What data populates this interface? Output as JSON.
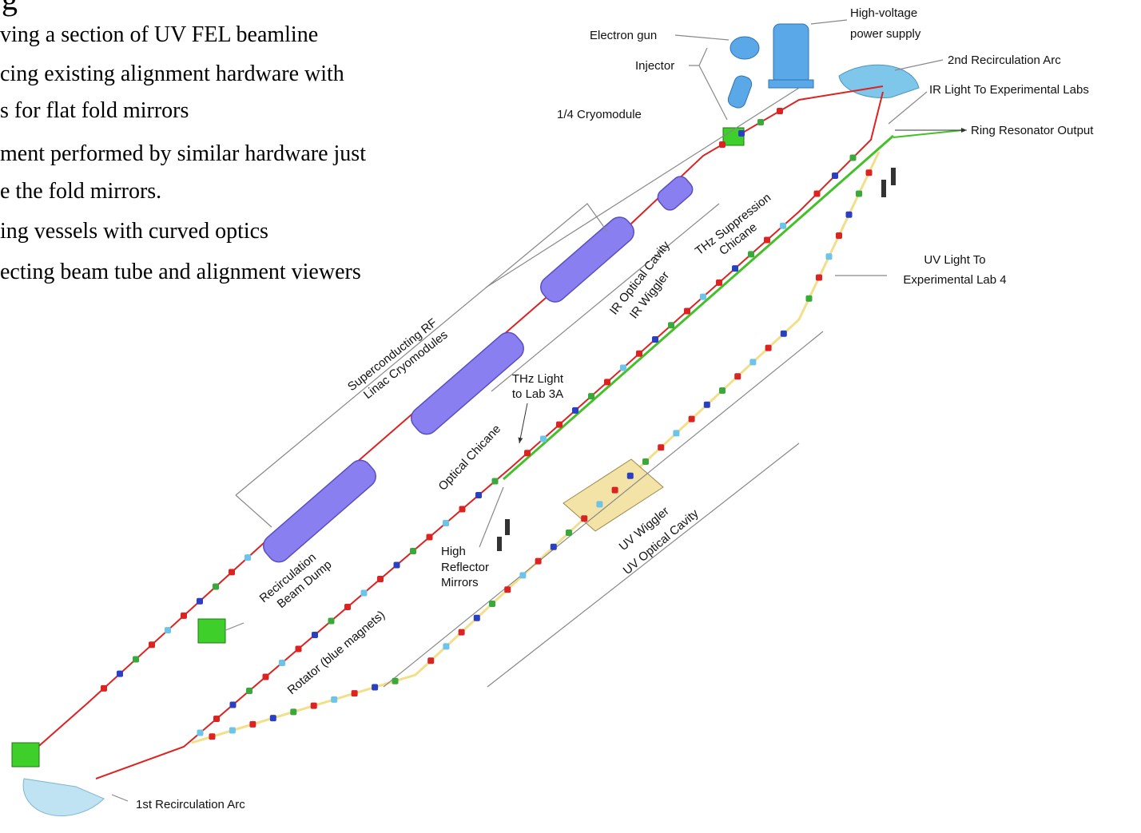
{
  "slide": {
    "heading_fragment": "g",
    "bullets": [
      "ving a section of UV FEL beamline",
      "cing existing  alignment hardware with",
      "s for flat fold mirrors",
      "ment performed by similar hardware just",
      "e the fold mirrors.",
      "ing vessels with curved optics",
      "ecting beam tube and alignment viewers"
    ]
  },
  "labels": {
    "high_voltage_power_supply": [
      "High-voltage",
      "power supply"
    ],
    "electron_gun": "Electron gun",
    "injector": "Injector",
    "quarter_cryomodule": "1/4 Cryomodule",
    "second_arc": "2nd Recirculation Arc",
    "ir_light": "IR Light To Experimental Labs",
    "ring_resonator": "Ring Resonator Output",
    "thz_suppression": [
      "THz Suppression",
      "Chicane"
    ],
    "ir_optical_cavity": "IR Optical Cavity",
    "ir_wiggler": "IR Wiggler",
    "uv_light": [
      "UV Light To",
      "Experimental Lab 4"
    ],
    "linac": [
      "Superconducting RF",
      "Linac Cryomodules"
    ],
    "thz_light": [
      "THz Light",
      "to Lab 3A"
    ],
    "optical_chicane": "Optical Chicane",
    "uv_wiggler": "UV Wiggler",
    "uv_optical_cavity": "UV Optical Cavity",
    "high_reflector": [
      "High",
      "Reflector",
      "Mirrors"
    ],
    "beam_dump": [
      "Recirculation",
      "Beam Dump"
    ],
    "rotator": "Rotator (blue magnets)",
    "first_arc": "1st Recirculation Arc"
  }
}
